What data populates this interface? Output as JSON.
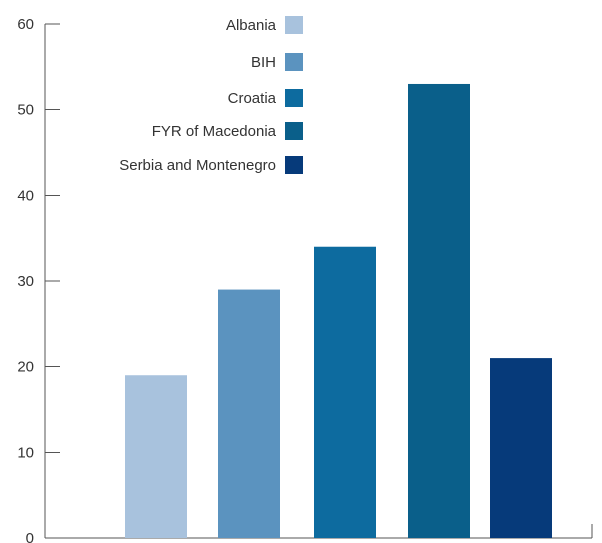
{
  "chart_data": {
    "type": "bar",
    "categories": [
      "Albania",
      "BIH",
      "Croatia",
      "FYR of Macedonia",
      "Serbia and Montenegro"
    ],
    "values": [
      19,
      29,
      34,
      53,
      21
    ],
    "ylim": [
      0,
      60
    ],
    "yticks": [
      "0",
      "10",
      "20",
      "30",
      "40",
      "50",
      "60"
    ],
    "title": "",
    "xlabel": "",
    "ylabel": "",
    "grid": false,
    "legend_position": "top-center",
    "colors": [
      "#a8c2dd",
      "#5b93bf",
      "#0d6b9f",
      "#0a5f8a",
      "#063a7a"
    ]
  }
}
